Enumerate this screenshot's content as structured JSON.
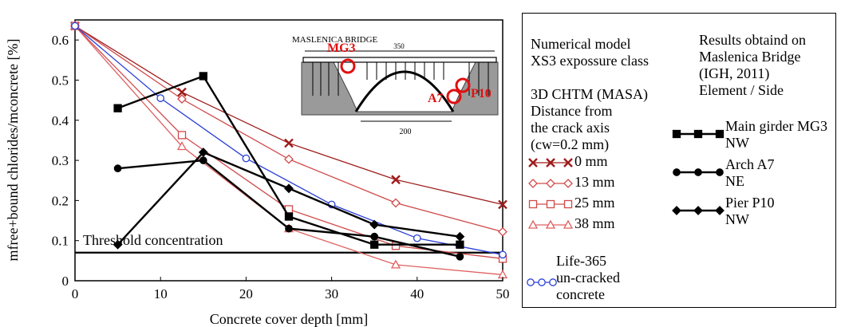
{
  "chart_data": {
    "type": "line",
    "xlabel": "Concrete cover depth [mm]",
    "ylabel": "mfree+bound chlorides/mconcrete [%]",
    "xlim": [
      0,
      50
    ],
    "ylim": [
      0,
      0.65
    ],
    "xticks": [
      "0",
      "10",
      "20",
      "30",
      "40",
      "50"
    ],
    "yticks": [
      "0",
      "0.1",
      "0.2",
      "0.3",
      "0.4",
      "0.5",
      "0.6"
    ],
    "threshold": {
      "label": "Threshold concentration",
      "value": 0.07
    },
    "series": [
      {
        "name": "0 mm",
        "color": "#9e1b1b",
        "marker": "x",
        "x": [
          0,
          12.5,
          25,
          37.5,
          50
        ],
        "y": [
          0.635,
          0.47,
          0.343,
          0.252,
          0.19
        ]
      },
      {
        "name": "13 mm",
        "color": "#d04a4a",
        "marker": "diamond-open",
        "x": [
          0,
          12.5,
          25,
          37.5,
          50
        ],
        "y": [
          0.635,
          0.453,
          0.303,
          0.194,
          0.122
        ]
      },
      {
        "name": "25 mm",
        "color": "#d04a4a",
        "marker": "square-open",
        "x": [
          0,
          12.5,
          25,
          37.5,
          50
        ],
        "y": [
          0.635,
          0.363,
          0.178,
          0.087,
          0.055
        ]
      },
      {
        "name": "38 mm",
        "color": "#e06060",
        "marker": "triangle-open",
        "x": [
          0,
          12.5,
          25,
          37.5,
          50
        ],
        "y": [
          0.635,
          0.335,
          0.13,
          0.04,
          0.015
        ]
      },
      {
        "name": "Life-365 un-cracked concrete",
        "color": "#2a3fd6",
        "marker": "circle-open",
        "x": [
          0,
          10,
          20,
          30,
          40,
          50
        ],
        "y": [
          0.635,
          0.455,
          0.305,
          0.19,
          0.106,
          0.065
        ]
      },
      {
        "name": "Main girder MG3 NW",
        "color": "#000000",
        "marker": "square-filled",
        "x": [
          5,
          15,
          25,
          35,
          45
        ],
        "y": [
          0.43,
          0.51,
          0.16,
          0.09,
          0.09
        ]
      },
      {
        "name": "Arch A7 NE",
        "color": "#000000",
        "marker": "circle-filled",
        "x": [
          5,
          15,
          25,
          35,
          45
        ],
        "y": [
          0.28,
          0.3,
          0.13,
          0.11,
          0.06
        ]
      },
      {
        "name": "Pier P10 NW",
        "color": "#000000",
        "marker": "diamond-filled",
        "x": [
          5,
          15,
          25,
          35,
          45
        ],
        "y": [
          0.09,
          0.32,
          0.23,
          0.14,
          0.11
        ]
      }
    ]
  },
  "inset": {
    "title": "MASLENICA BRIDGE",
    "span_label": "350",
    "arch_label": "200",
    "marks": [
      "MG3",
      "A7",
      "P10"
    ]
  },
  "legend": {
    "model_heading": "Numerical model\nXS3 expossure class",
    "masa_heading": "3D CHTM (MASA)\nDistance from\nthe crack axis\n(cw=0.2 mm)",
    "masa_items": [
      "0 mm",
      "13 mm",
      "25 mm",
      "38 mm"
    ],
    "life_label": "Life-365\nun-cracked\nconcrete",
    "results_heading": "Results obtaind on\nMaslenica Bridge\n(IGH, 2011)\nElement / Side",
    "results_items": [
      "Main girder MG3\nNW",
      "Arch A7\nNE",
      "Pier P10\nNW"
    ]
  }
}
